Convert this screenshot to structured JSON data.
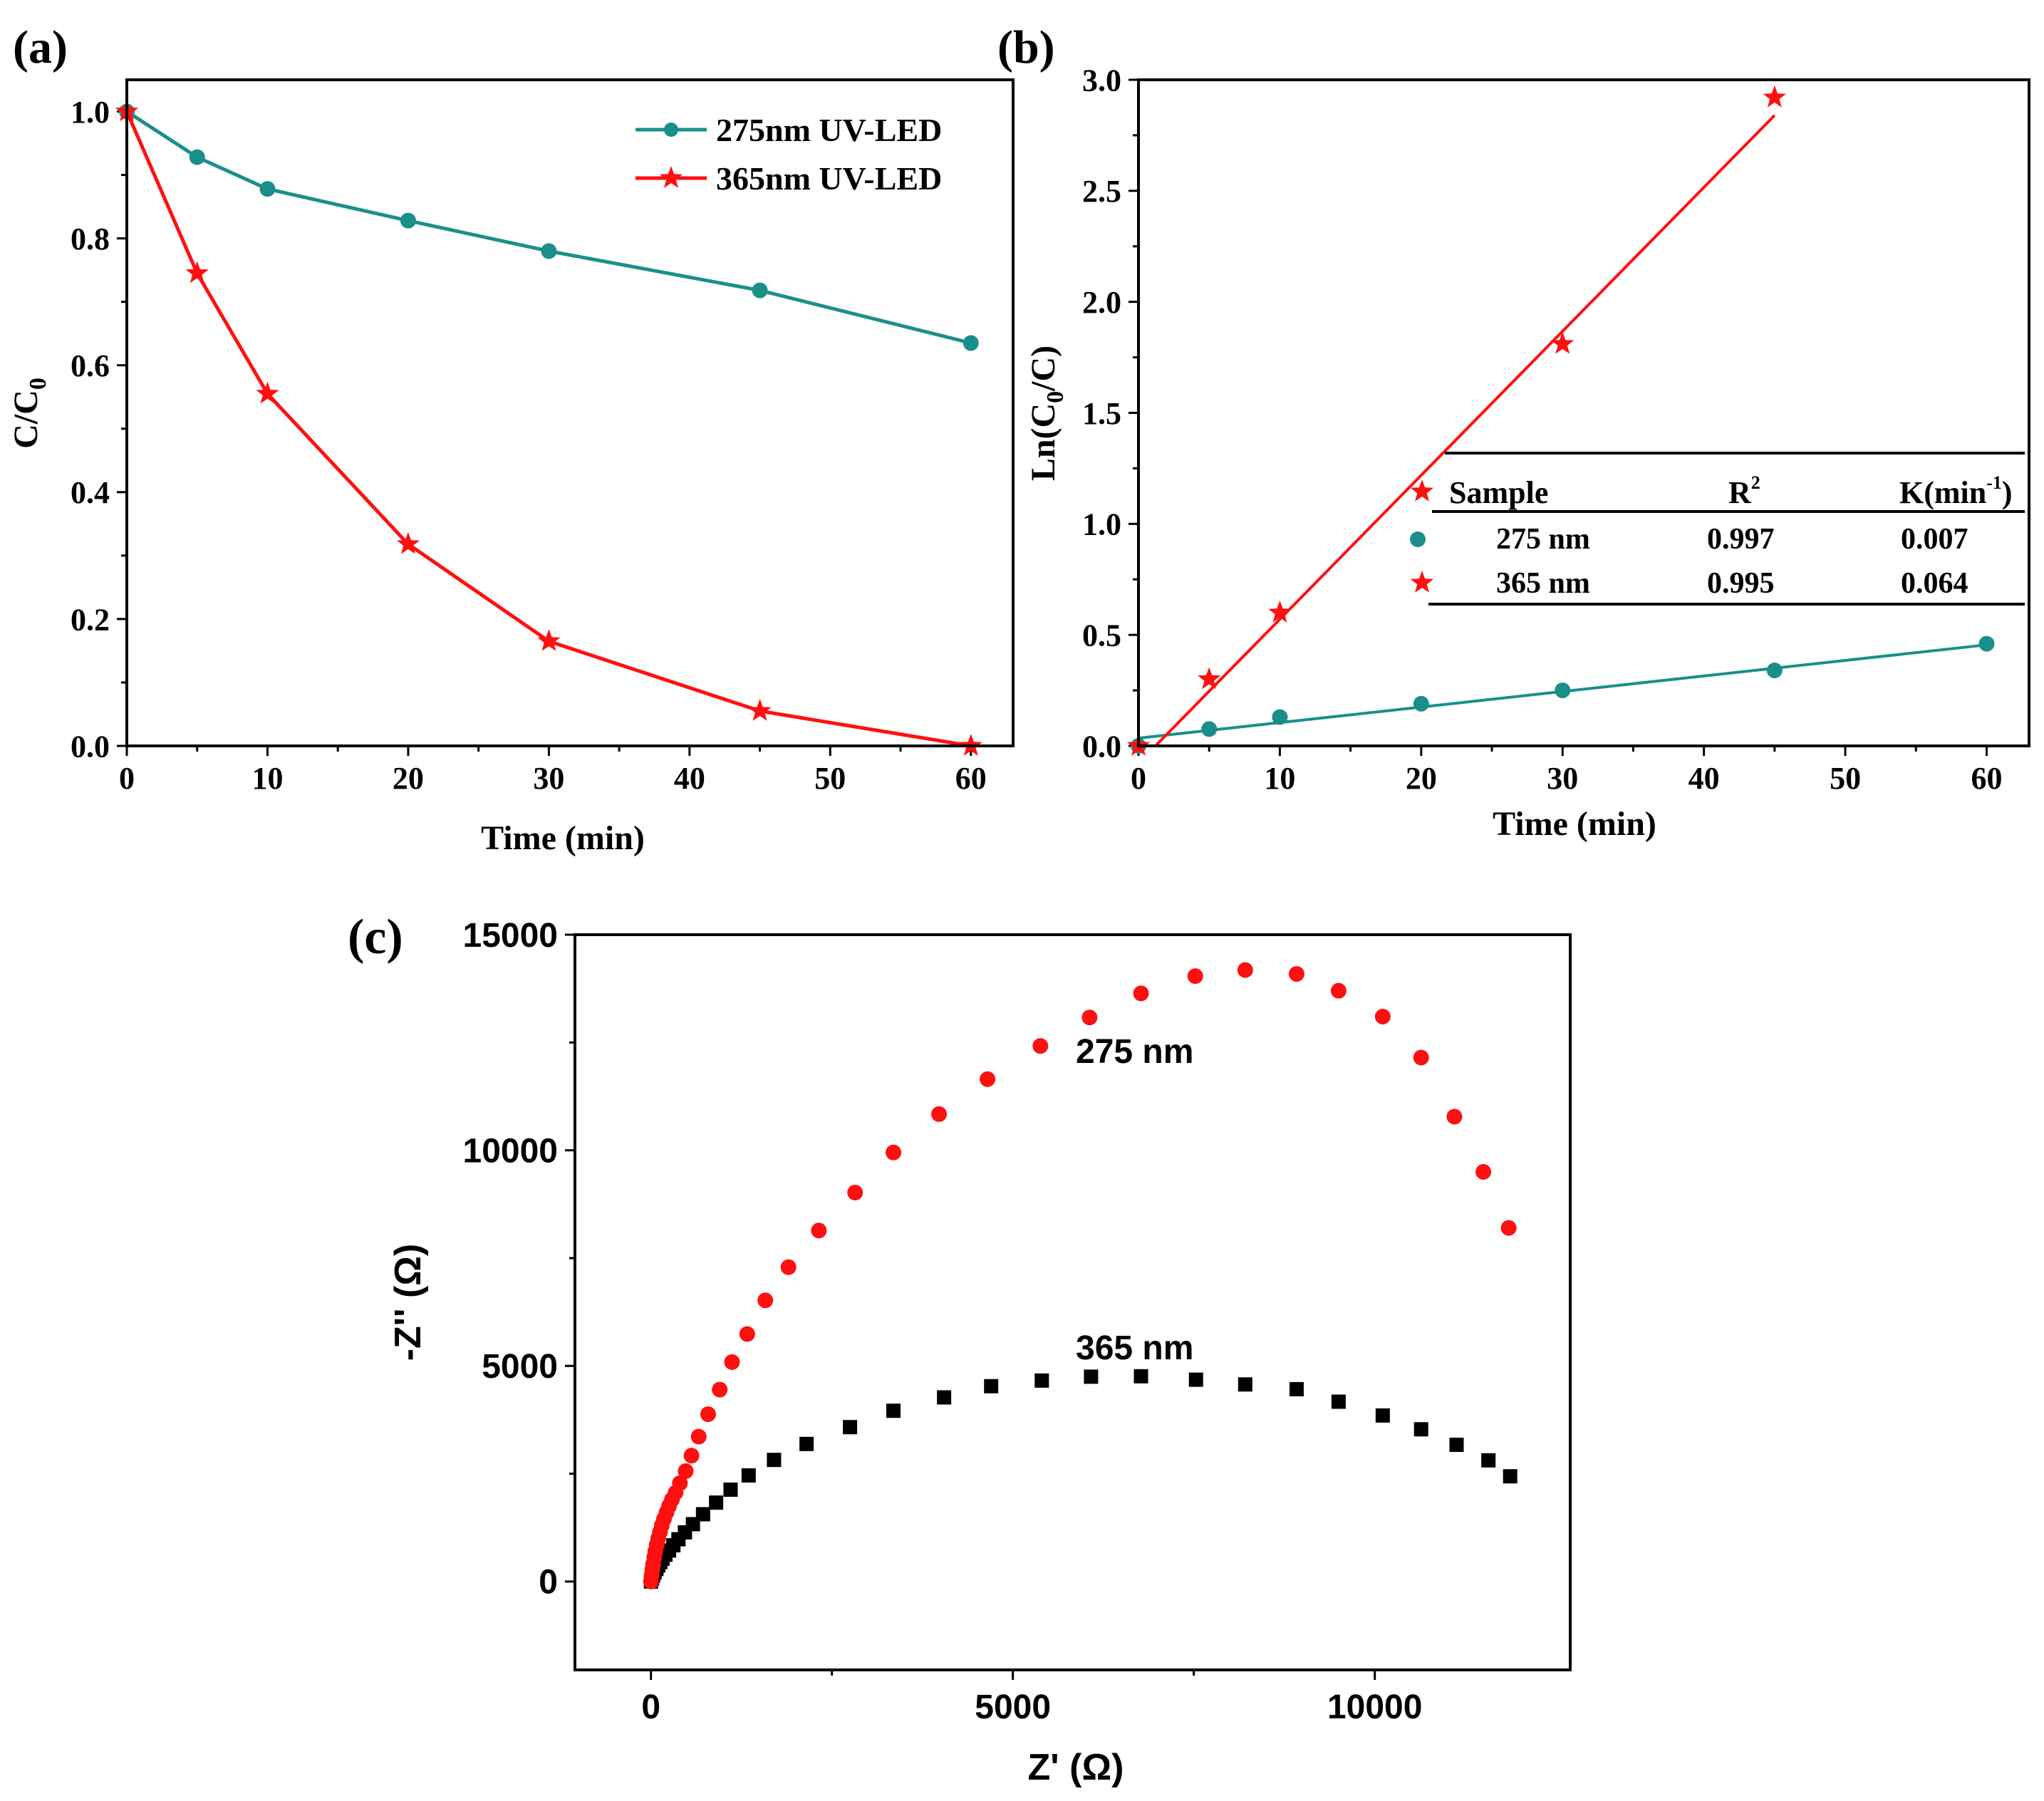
{
  "colors": {
    "teal": "#1a8f8a",
    "red": "#ff1010",
    "black": "#000000"
  },
  "chart_data": [
    {
      "id": "a",
      "panel_label": "(a)",
      "type": "line",
      "xlabel": "Time (min)",
      "ylabel": "C/C0",
      "ylabel_main": "C/C",
      "ylabel_sub": "0",
      "xlim": [
        0,
        63
      ],
      "ylim": [
        0,
        1.05
      ],
      "xticks": [
        0,
        10,
        20,
        30,
        40,
        50,
        60
      ],
      "xtick_labels": [
        "0",
        "10",
        "20",
        "30",
        "40",
        "50",
        "60"
      ],
      "yticks": [
        0,
        0.2,
        0.4,
        0.6,
        0.8,
        1.0
      ],
      "ytick_labels": [
        "0.0",
        "0.2",
        "0.4",
        "0.6",
        "0.8",
        "1.0"
      ],
      "legend_position": "top-right",
      "series": [
        {
          "name": "275nm UV-LED",
          "marker": "circle",
          "color": "#1a8f8a",
          "x": [
            0,
            5,
            10,
            20,
            30,
            45,
            60
          ],
          "y": [
            1.0,
            0.928,
            0.878,
            0.828,
            0.78,
            0.718,
            0.635
          ]
        },
        {
          "name": "365nm UV-LED",
          "marker": "star",
          "color": "#ff1010",
          "x": [
            0,
            5,
            10,
            20,
            30,
            45,
            60
          ],
          "y": [
            1.0,
            0.745,
            0.555,
            0.318,
            0.165,
            0.055,
            0.0
          ]
        }
      ]
    },
    {
      "id": "b",
      "panel_label": "(b)",
      "type": "scatter",
      "xlabel": "Time (min)",
      "ylabel": "Ln(C0/C)",
      "ylabel_pre": "Ln(C",
      "ylabel_sub": "0",
      "ylabel_post": "/C)",
      "xlim": [
        0,
        63
      ],
      "ylim": [
        0,
        3.0
      ],
      "xticks": [
        0,
        10,
        20,
        30,
        40,
        50,
        60
      ],
      "xtick_labels": [
        "0",
        "10",
        "20",
        "30",
        "40",
        "50",
        "60"
      ],
      "yticks": [
        0,
        0.5,
        1.0,
        1.5,
        2.0,
        2.5,
        3.0
      ],
      "ytick_labels": [
        "0.0",
        "0.5",
        "1.0",
        "1.5",
        "2.0",
        "2.5",
        "3.0"
      ],
      "series": [
        {
          "name": "275 nm",
          "marker": "circle",
          "color": "#1a8f8a",
          "x": [
            0,
            5,
            10,
            20,
            30,
            45,
            60
          ],
          "y": [
            0.0,
            0.076,
            0.13,
            0.19,
            0.25,
            0.34,
            0.46
          ],
          "fit": {
            "x": [
              0,
              60
            ],
            "y": [
              0.035,
              0.455
            ]
          }
        },
        {
          "name": "365 nm",
          "marker": "star",
          "color": "#ff1010",
          "x": [
            0,
            5,
            10,
            30,
            45
          ],
          "y": [
            0.0,
            0.3,
            0.6,
            1.81,
            2.92
          ],
          "fit": {
            "x": [
              1.2,
              45
            ],
            "y": [
              0.0,
              2.84
            ]
          }
        }
      ],
      "table": {
        "headers": [
          "Sample",
          "R",
          "K(min",
          ")"
        ],
        "header_superscripts": [
          "",
          "2",
          "-1",
          ""
        ],
        "header_r_label": "R",
        "header_r_sup": "2",
        "header_k_label": "K(min",
        "header_k_sup": "-1",
        "header_k_close": ")",
        "rows": [
          {
            "sample": "275 nm",
            "r2": "0.997",
            "k": "0.007"
          },
          {
            "sample": "365 nm",
            "r2": "0.995",
            "k": "0.064"
          }
        ]
      }
    },
    {
      "id": "c",
      "panel_label": "(c)",
      "type": "scatter",
      "xlabel": "Z' (Ω)",
      "ylabel": "-Z'' (Ω)",
      "xlim": [
        -1050,
        12700
      ],
      "ylim": [
        -2050,
        15000
      ],
      "xticks": [
        0,
        5000,
        10000
      ],
      "xtick_labels": [
        "0",
        "5000",
        "10000"
      ],
      "yticks": [
        0,
        5000,
        10000,
        15000
      ],
      "ytick_labels": [
        "0",
        "5000",
        "10000",
        "15000"
      ],
      "annotations": [
        "275 nm",
        "365 nm"
      ],
      "series": [
        {
          "name": "275 nm",
          "marker": "circle",
          "color": "#ff1010",
          "x": [
            0,
            10,
            20,
            30,
            45,
            60,
            80,
            100,
            125,
            150,
            180,
            215,
            250,
            290,
            340,
            400,
            480,
            560,
            660,
            790,
            950,
            1120,
            1330,
            1580,
            1900,
            2320,
            2820,
            3350,
            3980,
            4650,
            5380,
            6060,
            6770,
            7520,
            8210,
            8920,
            9500,
            10110,
            10640,
            11100,
            11500,
            11850
          ],
          "y": [
            0,
            150,
            280,
            400,
            560,
            700,
            850,
            1000,
            1150,
            1300,
            1450,
            1600,
            1750,
            1900,
            2060,
            2280,
            2560,
            2920,
            3360,
            3880,
            4450,
            5090,
            5740,
            6520,
            7290,
            8140,
            9020,
            9950,
            10840,
            11650,
            12420,
            13080,
            13640,
            14040,
            14180,
            14090,
            13700,
            13100,
            12150,
            10780,
            9500,
            8200
          ]
        },
        {
          "name": "365 nm",
          "marker": "square",
          "color": "#000000",
          "x": [
            0,
            15,
            30,
            50,
            75,
            100,
            130,
            160,
            200,
            250,
            310,
            380,
            470,
            580,
            720,
            900,
            1100,
            1350,
            1700,
            2150,
            2750,
            3350,
            4050,
            4700,
            5400,
            6080,
            6770,
            7530,
            8210,
            8920,
            9500,
            10110,
            10640,
            11130,
            11570,
            11870
          ],
          "y": [
            0,
            70,
            140,
            210,
            290,
            370,
            450,
            530,
            620,
            720,
            840,
            980,
            1140,
            1330,
            1560,
            1830,
            2130,
            2460,
            2820,
            3190,
            3580,
            3960,
            4270,
            4530,
            4660,
            4750,
            4760,
            4680,
            4570,
            4460,
            4170,
            3850,
            3530,
            3170,
            2810,
            2440
          ]
        }
      ]
    }
  ]
}
